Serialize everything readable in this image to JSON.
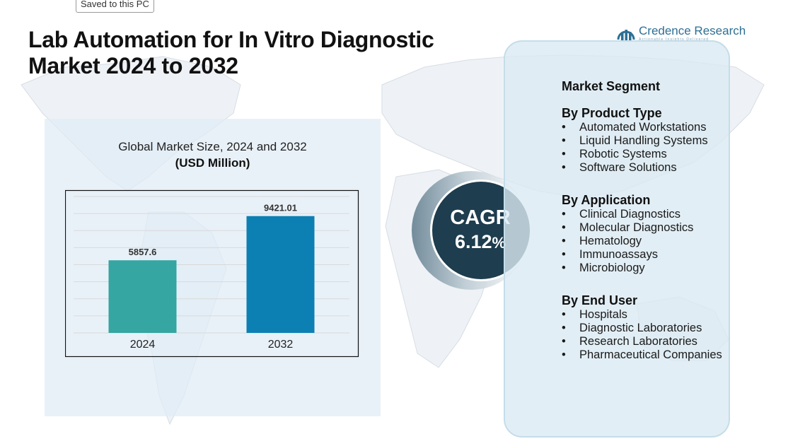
{
  "tooltip": {
    "text": "Saved to this PC"
  },
  "title": {
    "line1": "Lab Automation for In Vitro Diagnostic",
    "line2": "Market 2024 to 2032"
  },
  "logo": {
    "text": "Credence Research",
    "tagline": "Actionable Insights Delivered",
    "icon": "bar-chart-arc-logo-icon"
  },
  "chart_data": {
    "type": "bar",
    "title": "Global Market Size, 2024 and 2032",
    "unit": "(USD Million)",
    "categories": [
      "2024",
      "2032"
    ],
    "values": [
      5857.6,
      9421.01
    ],
    "value_labels": [
      "5857.6",
      "9421.01"
    ],
    "colors": [
      "#35a6a2",
      "#0c80b3"
    ],
    "ylim": [
      0,
      11000
    ],
    "grid": true,
    "legend": "none"
  },
  "cagr": {
    "label": "CAGR",
    "value": "6.12",
    "suffix": "%",
    "color": "#1e3d4e"
  },
  "segments": {
    "heading": "Market Segment",
    "bullet": "•",
    "groups": [
      {
        "title": "By Product Type",
        "items": [
          "Automated Workstations",
          "Liquid Handling Systems",
          "Robotic Systems",
          "Software Solutions"
        ]
      },
      {
        "title": "By Application",
        "items": [
          "Clinical Diagnostics",
          "Molecular Diagnostics",
          "Hematology",
          "Immunoassays",
          "Microbiology"
        ]
      },
      {
        "title": "By End User",
        "items": [
          "Hospitals",
          "Diagnostic Laboratories",
          "Research Laboratories",
          "Pharmaceutical Companies"
        ]
      }
    ]
  }
}
